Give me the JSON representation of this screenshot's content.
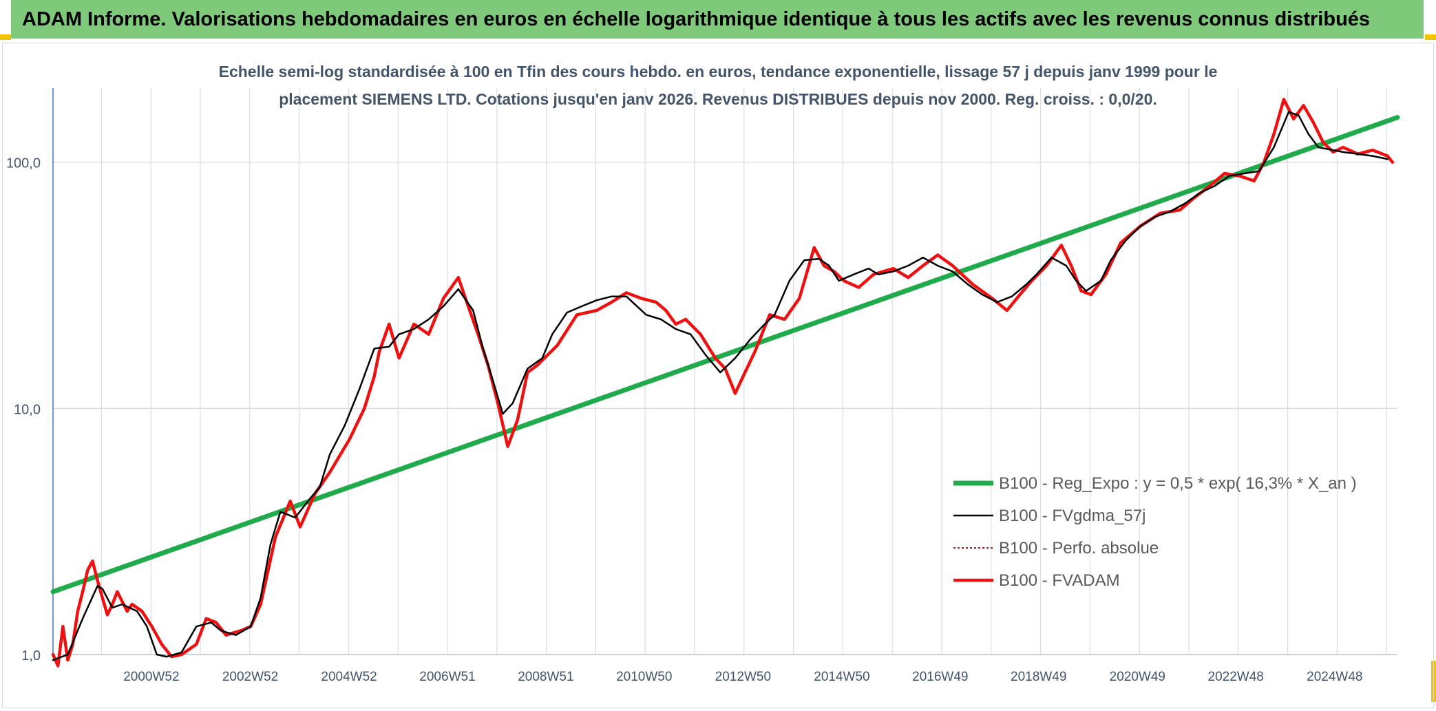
{
  "banner": {
    "title": "ADAM Informe. Valorisations hebdomadaires en euros en échelle logarithmique identique à tous les actifs avec les revenus connus distribués"
  },
  "colors": {
    "banner_bg": "#7ec97a",
    "corner": "#f2c400",
    "trend": "#1faa4b",
    "fvgdma": "#000000",
    "perfo": "#e00000",
    "fvadam": "#ee1111",
    "grid": "#d9dde3",
    "axis_text": "#44546a"
  },
  "chart_data": {
    "type": "line",
    "title_lines": [
      "Echelle semi-log standardisée à 100 en Tfin des cours hebdo. en euros, tendance exponentielle, lissage 57 j depuis janv 1999 pour le",
      "placement SIEMENS LTD. Cotations jusqu'en janv 2026. Revenus DISTRIBUES depuis nov 2000. Reg. croiss. : 0,0/20."
    ],
    "y_scale": "log",
    "ylim": [
      1,
      200
    ],
    "xlim": [
      1999.0,
      2026.2
    ],
    "y_ticks": [
      {
        "value": 1,
        "label": "1,0"
      },
      {
        "value": 10,
        "label": "10,0"
      },
      {
        "value": 100,
        "label": "100,0"
      }
    ],
    "x_ticks": [
      {
        "value": 2000.99,
        "label": "2000W52"
      },
      {
        "value": 2002.99,
        "label": "2002W52"
      },
      {
        "value": 2004.99,
        "label": "2004W52"
      },
      {
        "value": 2006.98,
        "label": "2006W51"
      },
      {
        "value": 2008.97,
        "label": "2008W51"
      },
      {
        "value": 2010.96,
        "label": "2010W50"
      },
      {
        "value": 2012.96,
        "label": "2012W50"
      },
      {
        "value": 2014.96,
        "label": "2014W50"
      },
      {
        "value": 2016.95,
        "label": "2016W49"
      },
      {
        "value": 2018.94,
        "label": "2018W49"
      },
      {
        "value": 2020.94,
        "label": "2020W49"
      },
      {
        "value": 2022.93,
        "label": "2022W48"
      },
      {
        "value": 2024.93,
        "label": "2024W48"
      }
    ],
    "grid": true,
    "legend_position": "bottom-right",
    "series": [
      {
        "name": "B100 - Reg_Expo : y = 0,5 * exp( 16,3% *  X_an )",
        "key": "trend",
        "x": [
          1999.0,
          2026.2
        ],
        "y": [
          1.8,
          152
        ]
      },
      {
        "name": "B100 - FVgdma_57j",
        "key": "fvgdma",
        "x": [
          1999.0,
          1999.3,
          1999.6,
          1999.9,
          2000.0,
          2000.2,
          2000.4,
          2000.7,
          2000.9,
          2001.1,
          2001.3,
          2001.6,
          2001.9,
          2002.2,
          2002.4,
          2002.7,
          2003.0,
          2003.2,
          2003.4,
          2003.6,
          2003.9,
          2004.2,
          2004.4,
          2004.6,
          2004.9,
          2005.2,
          2005.5,
          2005.8,
          2006.0,
          2006.3,
          2006.6,
          2006.9,
          2007.2,
          2007.5,
          2007.7,
          2007.9,
          2008.1,
          2008.3,
          2008.6,
          2008.9,
          2009.1,
          2009.4,
          2009.7,
          2010.0,
          2010.3,
          2010.6,
          2011.0,
          2011.3,
          2011.6,
          2011.9,
          2012.2,
          2012.5,
          2012.8,
          2013.1,
          2013.4,
          2013.6,
          2013.9,
          2014.2,
          2014.5,
          2014.7,
          2014.9,
          2015.2,
          2015.5,
          2015.7,
          2016.0,
          2016.3,
          2016.6,
          2016.9,
          2017.2,
          2017.5,
          2017.8,
          2018.1,
          2018.4,
          2018.7,
          2018.9,
          2019.2,
          2019.5,
          2019.7,
          2019.9,
          2020.2,
          2020.4,
          2020.7,
          2021.0,
          2021.3,
          2021.6,
          2021.9,
          2022.2,
          2022.5,
          2022.8,
          2023.1,
          2023.4,
          2023.7,
          2024.0,
          2024.2,
          2024.4,
          2024.6,
          2024.9,
          2025.1,
          2025.4,
          2025.7,
          2026.0
        ],
        "y": [
          0.95,
          1.0,
          1.4,
          1.9,
          1.85,
          1.55,
          1.6,
          1.5,
          1.3,
          1.0,
          0.98,
          1.02,
          1.3,
          1.35,
          1.25,
          1.2,
          1.3,
          1.7,
          2.8,
          3.8,
          3.6,
          4.3,
          4.8,
          6.5,
          8.5,
          12.0,
          17.5,
          17.8,
          20.0,
          21.0,
          23.0,
          26.0,
          30.5,
          25.0,
          17.5,
          13.0,
          9.5,
          10.5,
          14.5,
          16.0,
          20.0,
          24.5,
          26.0,
          27.5,
          28.5,
          28.5,
          24.0,
          23.0,
          21.0,
          20.0,
          16.5,
          14.0,
          16.0,
          19.0,
          22.0,
          24.0,
          33.0,
          40.0,
          40.5,
          38.0,
          33.0,
          35.0,
          37.0,
          35.0,
          36.0,
          38.0,
          41.0,
          38.0,
          36.0,
          32.0,
          29.0,
          27.0,
          28.5,
          32.0,
          35.0,
          41.0,
          38.0,
          33.0,
          30.0,
          33.0,
          40.0,
          48.0,
          55.0,
          60.0,
          63.0,
          68.0,
          75.0,
          80.0,
          88.0,
          90.0,
          92.0,
          115.0,
          160.0,
          155.0,
          130.0,
          115.0,
          112.0,
          110.0,
          108.0,
          106.0,
          103.0
        ]
      },
      {
        "name": "B100 - Perfo. absolue",
        "key": "perfo",
        "x": [],
        "y": []
      },
      {
        "name": "B100 - FVADAM",
        "key": "fvadam",
        "x": [
          1999.0,
          1999.1,
          1999.2,
          1999.3,
          1999.4,
          1999.5,
          1999.6,
          1999.7,
          1999.8,
          1999.9,
          2000.0,
          2000.1,
          2000.2,
          2000.3,
          2000.5,
          2000.6,
          2000.8,
          2001.0,
          2001.2,
          2001.4,
          2001.6,
          2001.9,
          2002.1,
          2002.3,
          2002.5,
          2002.8,
          2003.0,
          2003.2,
          2003.5,
          2003.8,
          2004.0,
          2004.3,
          2004.6,
          2005.0,
          2005.3,
          2005.5,
          2005.6,
          2005.8,
          2006.0,
          2006.3,
          2006.6,
          2006.9,
          2007.2,
          2007.4,
          2007.6,
          2007.8,
          2008.0,
          2008.2,
          2008.4,
          2008.6,
          2008.8,
          2009.2,
          2009.6,
          2010.0,
          2010.3,
          2010.6,
          2010.9,
          2011.2,
          2011.4,
          2011.6,
          2011.8,
          2012.1,
          2012.4,
          2012.6,
          2012.8,
          2013.0,
          2013.2,
          2013.5,
          2013.8,
          2014.1,
          2014.4,
          2014.6,
          2014.8,
          2015.0,
          2015.3,
          2015.6,
          2016.0,
          2016.3,
          2016.6,
          2016.9,
          2017.2,
          2017.6,
          2018.0,
          2018.3,
          2018.5,
          2018.8,
          2019.1,
          2019.4,
          2019.6,
          2019.8,
          2020.0,
          2020.3,
          2020.6,
          2021.0,
          2021.4,
          2021.8,
          2022.1,
          2022.4,
          2022.7,
          2023.0,
          2023.3,
          2023.5,
          2023.7,
          2023.9,
          2024.1,
          2024.3,
          2024.5,
          2024.7,
          2024.9,
          2025.1,
          2025.4,
          2025.7,
          2026.0,
          2026.1
        ],
        "y": [
          1.0,
          0.9,
          1.3,
          0.95,
          1.1,
          1.5,
          1.8,
          2.2,
          2.4,
          2.0,
          1.7,
          1.45,
          1.6,
          1.8,
          1.5,
          1.6,
          1.5,
          1.3,
          1.1,
          0.98,
          1.0,
          1.1,
          1.4,
          1.35,
          1.2,
          1.25,
          1.3,
          1.6,
          3.0,
          4.2,
          3.3,
          4.5,
          5.5,
          7.5,
          10.0,
          13.5,
          17.0,
          22.0,
          16.0,
          22.0,
          20.0,
          28.0,
          34.0,
          26.0,
          20.0,
          15.0,
          10.5,
          7.0,
          9.0,
          14.0,
          15.0,
          18.0,
          24.0,
          25.0,
          27.0,
          29.5,
          28.0,
          27.0,
          25.0,
          22.0,
          23.0,
          20.0,
          16.0,
          14.5,
          11.5,
          14.0,
          17.0,
          24.0,
          23.0,
          28.0,
          45.0,
          38.0,
          36.0,
          33.0,
          31.0,
          35.0,
          37.0,
          34.0,
          38.0,
          42.0,
          38.0,
          32.0,
          28.0,
          25.0,
          28.0,
          33.0,
          38.0,
          46.0,
          38.0,
          30.0,
          29.0,
          35.0,
          47.0,
          55.0,
          62.0,
          64.0,
          72.0,
          80.0,
          90.0,
          88.0,
          84.0,
          100.0,
          130.0,
          180.0,
          150.0,
          170.0,
          145.0,
          120.0,
          110.0,
          115.0,
          108.0,
          112.0,
          106.0,
          100.0
        ]
      }
    ]
  }
}
